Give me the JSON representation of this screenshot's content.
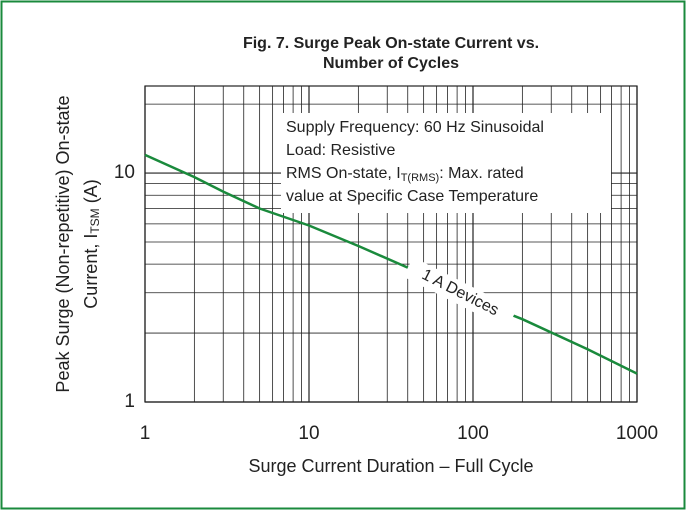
{
  "chart_data": {
    "type": "line",
    "title": [
      "Fig. 7. Surge Peak On-state Current vs.",
      "Number of Cycles"
    ],
    "x_label": "Surge Current Duration – Full Cycle",
    "y_label": [
      "Peak Surge (Non-repetitive) On-state",
      "Current, I",
      "TSM",
      " (A)"
    ],
    "annotation": [
      "Supply Frequency: 60 Hz Sinusoidal",
      "Load: Resistive",
      "RMS On-state, I",
      "T(RMS)",
      ": Max. rated",
      "value at Specific Case Temperature"
    ],
    "x": [
      1,
      2,
      3,
      5,
      10,
      20,
      50,
      100,
      200,
      500,
      1000
    ],
    "series": [
      {
        "name": "1 A Devices",
        "color": "#1a8a3c",
        "values": [
          12,
          9.6,
          8.3,
          7.0,
          5.9,
          4.8,
          3.6,
          2.8,
          2.3,
          1.7,
          1.33
        ]
      }
    ],
    "xlim": [
      1,
      1000
    ],
    "ylim": [
      1,
      24
    ],
    "xticks": [
      1,
      10,
      100,
      1000
    ],
    "yticks": [
      1,
      10
    ],
    "xscale": "log",
    "yscale": "log",
    "grid": true,
    "title_color": "#1a8a3c",
    "border_color": "#1a8a3c"
  }
}
